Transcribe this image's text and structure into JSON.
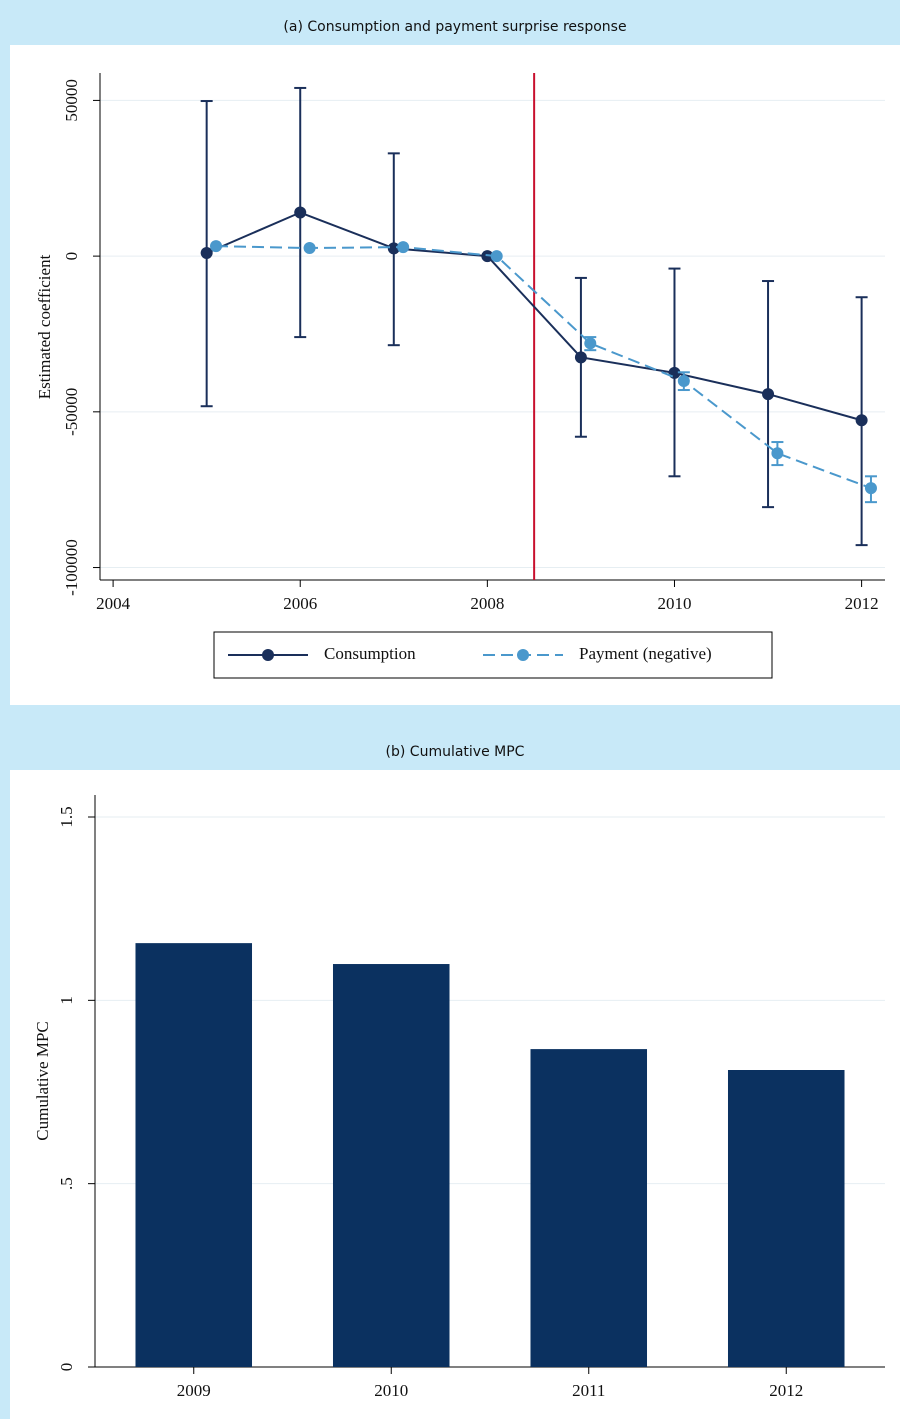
{
  "chart_data": [
    {
      "type": "line",
      "title": "(a) Consumption and payment surprise response",
      "y_label": "Estimated coefficient",
      "xlim": [
        2003.86,
        2012.25
      ],
      "xticks": [
        2004,
        2006,
        2008,
        2010,
        2012
      ],
      "ylim": [
        -104000,
        58800
      ],
      "yticks": [
        -100000,
        -50000,
        0,
        50000
      ],
      "grid": true,
      "vline": 2008.5,
      "vline_color": "#c8102e",
      "series": [
        {
          "name": "Consumption",
          "color": "#1a2f5a",
          "dashed": false,
          "x": [
            2005,
            2006,
            2007,
            2008,
            2009,
            2010,
            2011,
            2012
          ],
          "values": [
            1000,
            14000,
            2500,
            0,
            -32500,
            -37500,
            -44300,
            -52700
          ],
          "ci_low": [
            -48200,
            -26000,
            -28600,
            null,
            -58000,
            -70700,
            -80600,
            -92800
          ],
          "ci_high": [
            49800,
            54000,
            33000,
            null,
            -7000,
            -4000,
            -8000,
            -13200
          ]
        },
        {
          "name": "Payment (negative)",
          "color": "#4a98cc",
          "dashed": true,
          "x": [
            2005.1,
            2006.1,
            2007.1,
            2008.1,
            2009.1,
            2010.1,
            2011.1,
            2012.1
          ],
          "values": [
            3200,
            2600,
            2900,
            0,
            -28000,
            -40100,
            -63300,
            -74500
          ],
          "ci_low": [
            null,
            null,
            null,
            null,
            -30200,
            -43000,
            -67100,
            -79000
          ],
          "ci_high": [
            null,
            null,
            null,
            null,
            -26000,
            -37300,
            -59700,
            -70700
          ]
        }
      ]
    },
    {
      "type": "bar",
      "title": "(b) Cumulative MPC",
      "y_label": "Cumulative MPC",
      "categories": [
        "2009",
        "2010",
        "2011",
        "2012"
      ],
      "values": [
        1.156,
        1.099,
        0.867,
        0.81
      ],
      "color": "#0b3160",
      "ylim": [
        0,
        1.56
      ],
      "yticks": [
        0,
        {
          "value": 0.5,
          "label": ".5"
        },
        1,
        1.5
      ],
      "grid": true
    }
  ]
}
